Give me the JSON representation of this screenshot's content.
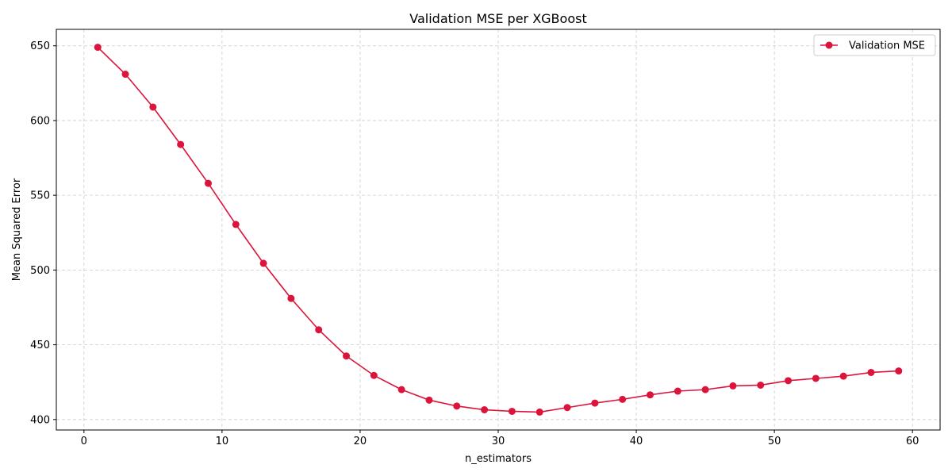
{
  "chart_data": {
    "type": "line",
    "title": "Validation MSE per XGBoost",
    "xlabel": "n_estimators",
    "ylabel": "Mean Squared Error",
    "xlim": [
      -2,
      62
    ],
    "ylim": [
      393,
      661
    ],
    "xticks": [
      0,
      10,
      20,
      30,
      40,
      50,
      60
    ],
    "yticks": [
      400,
      450,
      500,
      550,
      600,
      650
    ],
    "grid": true,
    "legend_position": "top-right",
    "series": [
      {
        "name": "Validation MSE",
        "color": "#dc143c",
        "marker": "circle",
        "x": [
          1,
          3,
          5,
          7,
          9,
          11,
          13,
          15,
          17,
          19,
          21,
          23,
          25,
          27,
          29,
          31,
          33,
          35,
          37,
          39,
          41,
          43,
          45,
          47,
          49,
          51,
          53,
          55,
          57,
          59
        ],
        "y": [
          649,
          631,
          609,
          584,
          558,
          530.5,
          504.5,
          481,
          460,
          442.5,
          429.5,
          420,
          413,
          409,
          406.5,
          405.5,
          405,
          408,
          411,
          413.5,
          416.5,
          419,
          420,
          422.5,
          423,
          426,
          427.5,
          429,
          431.5,
          432.5
        ]
      }
    ]
  }
}
